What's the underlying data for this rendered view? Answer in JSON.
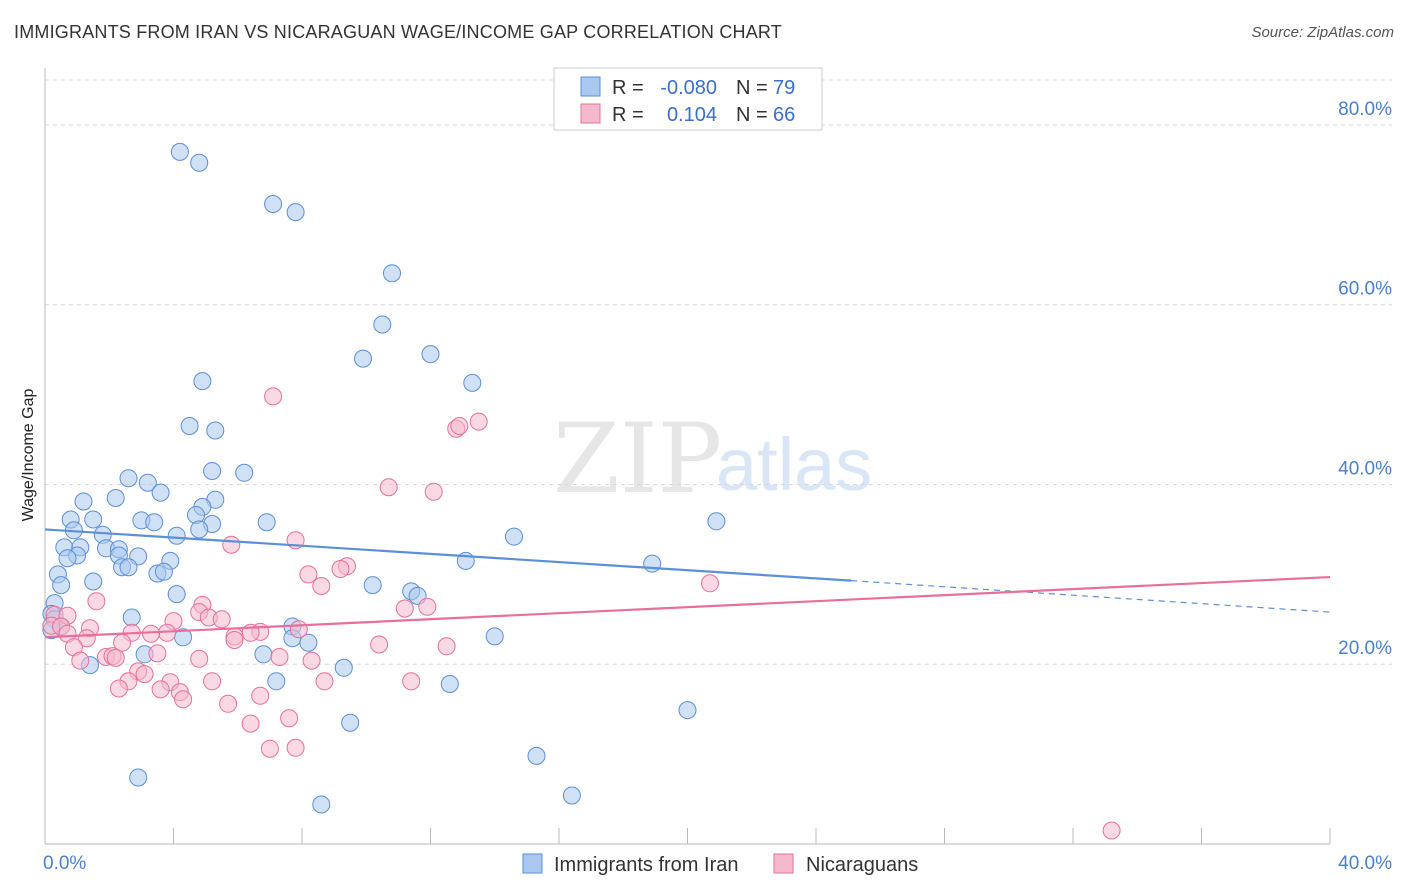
{
  "title": "IMMIGRANTS FROM IRAN VS NICARAGUAN WAGE/INCOME GAP CORRELATION CHART",
  "source": "Source: ZipAtlas.com",
  "watermark": {
    "zip": "ZIP",
    "atlas": "atlas"
  },
  "chart_data": {
    "type": "scatter",
    "title": "IMMIGRANTS FROM IRAN VS NICARAGUAN WAGE/INCOME GAP CORRELATION CHART",
    "xlabel": "",
    "ylabel": "Wage/Income Gap",
    "xlim": [
      0,
      40
    ],
    "ylim": [
      0,
      85
    ],
    "x_tick_labels": [
      "0.0%",
      "40.0%"
    ],
    "y_ticks": [
      20,
      40,
      60,
      80
    ],
    "y_tick_labels": [
      "20.0%",
      "40.0%",
      "60.0%",
      "80.0%"
    ],
    "grid": true,
    "legend_position": "bottom-center",
    "stats_box": [
      {
        "r_label": "R =",
        "r": "-0.080",
        "n_label": "N =",
        "n": "79"
      },
      {
        "r_label": "R =",
        "r": "0.104",
        "n_label": "N =",
        "n": "66"
      }
    ],
    "series": [
      {
        "name": "Immigrants from Iran",
        "color": "#5b8fd9",
        "fill": "#a9c8ef",
        "trend": {
          "x0": 0,
          "y0": 35.0,
          "x1": 25.1,
          "y1": 29.3,
          "dash_x1": 40,
          "dash_y1": 25.8
        },
        "points": [
          [
            4.2,
            77.0
          ],
          [
            4.8,
            75.8
          ],
          [
            7.1,
            71.2
          ],
          [
            7.8,
            70.3
          ],
          [
            10.8,
            63.5
          ],
          [
            10.5,
            57.8
          ],
          [
            9.9,
            54.0
          ],
          [
            12.0,
            54.5
          ],
          [
            13.3,
            51.3
          ],
          [
            4.9,
            51.5
          ],
          [
            4.5,
            46.5
          ],
          [
            5.3,
            46.0
          ],
          [
            5.2,
            41.5
          ],
          [
            6.2,
            41.3
          ],
          [
            2.6,
            40.7
          ],
          [
            3.2,
            40.2
          ],
          [
            3.6,
            39.1
          ],
          [
            1.2,
            38.1
          ],
          [
            2.2,
            38.5
          ],
          [
            5.3,
            38.3
          ],
          [
            4.9,
            37.5
          ],
          [
            0.8,
            36.1
          ],
          [
            1.5,
            36.1
          ],
          [
            3.0,
            36.0
          ],
          [
            3.4,
            35.8
          ],
          [
            4.7,
            36.6
          ],
          [
            5.2,
            35.6
          ],
          [
            6.9,
            35.8
          ],
          [
            4.8,
            35.0
          ],
          [
            0.9,
            34.9
          ],
          [
            1.8,
            34.4
          ],
          [
            4.1,
            34.3
          ],
          [
            14.6,
            34.2
          ],
          [
            20.9,
            35.9
          ],
          [
            0.6,
            33.0
          ],
          [
            1.1,
            33.0
          ],
          [
            1.9,
            32.9
          ],
          [
            2.3,
            32.8
          ],
          [
            1.0,
            32.1
          ],
          [
            2.9,
            32.0
          ],
          [
            0.7,
            31.8
          ],
          [
            2.3,
            32.1
          ],
          [
            3.9,
            31.5
          ],
          [
            13.1,
            31.5
          ],
          [
            18.9,
            31.2
          ],
          [
            2.4,
            30.8
          ],
          [
            2.6,
            30.8
          ],
          [
            3.5,
            30.1
          ],
          [
            3.7,
            30.3
          ],
          [
            0.4,
            30.0
          ],
          [
            1.5,
            29.2
          ],
          [
            0.5,
            28.8
          ],
          [
            10.2,
            28.8
          ],
          [
            11.4,
            28.1
          ],
          [
            11.6,
            27.6
          ],
          [
            4.1,
            27.8
          ],
          [
            0.3,
            26.8
          ],
          [
            0.2,
            25.6
          ],
          [
            0.3,
            25.0
          ],
          [
            2.7,
            25.2
          ],
          [
            0.5,
            24.2
          ],
          [
            0.2,
            23.8
          ],
          [
            7.7,
            24.2
          ],
          [
            7.7,
            22.9
          ],
          [
            4.3,
            23.0
          ],
          [
            8.2,
            22.4
          ],
          [
            14.0,
            23.1
          ],
          [
            6.8,
            21.1
          ],
          [
            3.1,
            21.1
          ],
          [
            1.4,
            19.9
          ],
          [
            9.3,
            19.6
          ],
          [
            7.2,
            18.1
          ],
          [
            12.6,
            17.8
          ],
          [
            20.0,
            14.9
          ],
          [
            9.5,
            13.5
          ],
          [
            15.3,
            9.8
          ],
          [
            2.9,
            7.4
          ],
          [
            8.6,
            4.4
          ],
          [
            16.4,
            5.4
          ]
        ]
      },
      {
        "name": "Nicaraguans",
        "color": "#e86f9b",
        "fill": "#f5b9cd",
        "trend": {
          "x0": 0,
          "y0": 23.0,
          "x1": 40,
          "y1": 29.7
        },
        "points": [
          [
            7.1,
            49.8
          ],
          [
            13.5,
            47.0
          ],
          [
            12.8,
            46.2
          ],
          [
            12.9,
            46.5
          ],
          [
            10.7,
            39.7
          ],
          [
            12.1,
            39.2
          ],
          [
            7.8,
            33.8
          ],
          [
            5.8,
            33.3
          ],
          [
            9.4,
            30.9
          ],
          [
            9.2,
            30.6
          ],
          [
            8.2,
            30.0
          ],
          [
            8.6,
            28.7
          ],
          [
            20.7,
            29.0
          ],
          [
            1.6,
            27.0
          ],
          [
            11.2,
            26.2
          ],
          [
            11.9,
            26.4
          ],
          [
            4.9,
            26.6
          ],
          [
            4.8,
            25.8
          ],
          [
            0.3,
            25.5
          ],
          [
            0.7,
            25.4
          ],
          [
            5.1,
            25.2
          ],
          [
            5.5,
            25.0
          ],
          [
            4.0,
            24.8
          ],
          [
            0.2,
            24.3
          ],
          [
            0.5,
            24.2
          ],
          [
            1.4,
            24.0
          ],
          [
            7.9,
            23.9
          ],
          [
            6.7,
            23.6
          ],
          [
            6.4,
            23.5
          ],
          [
            3.8,
            23.5
          ],
          [
            2.7,
            23.5
          ],
          [
            3.3,
            23.4
          ],
          [
            0.7,
            23.4
          ],
          [
            5.9,
            23.1
          ],
          [
            5.9,
            22.7
          ],
          [
            1.3,
            22.9
          ],
          [
            2.4,
            22.4
          ],
          [
            10.4,
            22.2
          ],
          [
            12.5,
            22.0
          ],
          [
            0.9,
            21.9
          ],
          [
            3.5,
            21.2
          ],
          [
            1.9,
            20.8
          ],
          [
            2.1,
            20.9
          ],
          [
            2.2,
            20.7
          ],
          [
            7.3,
            20.8
          ],
          [
            8.3,
            20.4
          ],
          [
            4.8,
            20.6
          ],
          [
            1.1,
            20.4
          ],
          [
            2.9,
            19.2
          ],
          [
            3.1,
            18.9
          ],
          [
            8.7,
            18.1
          ],
          [
            5.2,
            18.1
          ],
          [
            11.4,
            18.1
          ],
          [
            2.6,
            18.1
          ],
          [
            3.9,
            18.0
          ],
          [
            2.3,
            17.3
          ],
          [
            3.6,
            17.2
          ],
          [
            4.2,
            16.9
          ],
          [
            6.7,
            16.5
          ],
          [
            4.3,
            16.1
          ],
          [
            5.7,
            15.6
          ],
          [
            7.6,
            14.0
          ],
          [
            6.4,
            13.4
          ],
          [
            7.0,
            10.6
          ],
          [
            7.8,
            10.7
          ],
          [
            33.2,
            1.5
          ]
        ]
      }
    ]
  }
}
